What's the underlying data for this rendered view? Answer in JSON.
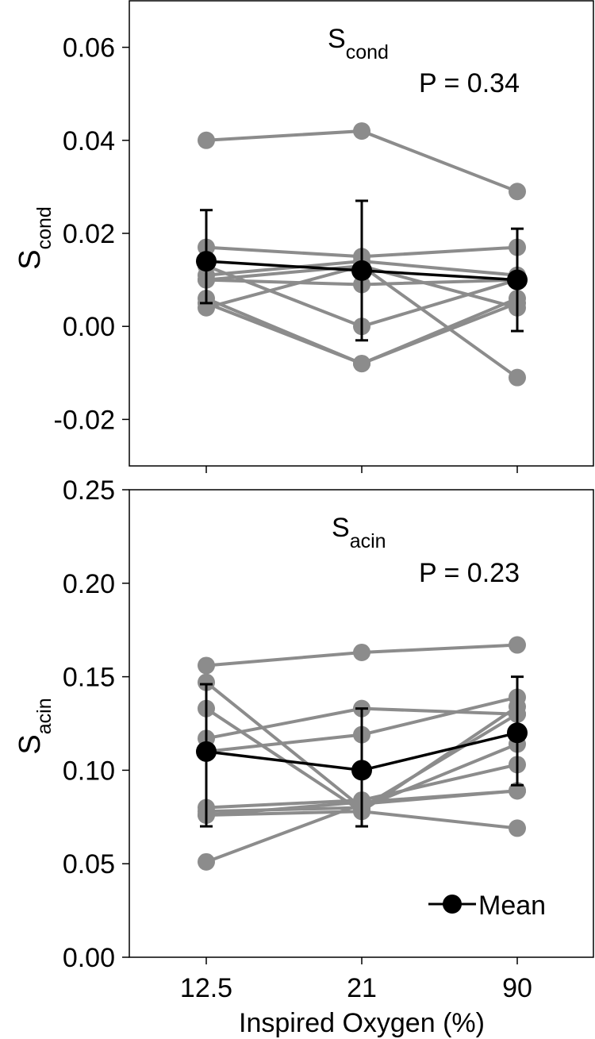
{
  "xlabel": "Inspired Oxygen (%)",
  "colors": {
    "subject": "#8c8c8c",
    "mean": "#000000",
    "frame": "#000000"
  },
  "chart_data": [
    {
      "type": "line",
      "title": "S",
      "title_sub": "cond",
      "annotation": "P = 0.34",
      "ylabel": "S",
      "ylabel_sub": "cond",
      "xlabel": "",
      "categories": [
        "12.5",
        "21",
        "90"
      ],
      "ylim": [
        -0.03,
        0.07
      ],
      "yticks": [
        "0.06",
        "0.04",
        "0.02",
        "0.00",
        "-0.02"
      ],
      "ytick_values": [
        0.06,
        0.04,
        0.02,
        0.0,
        -0.02
      ],
      "subjects": [
        [
          0.04,
          0.042,
          0.029
        ],
        [
          0.017,
          0.015,
          0.017
        ],
        [
          0.011,
          0.014,
          0.011
        ],
        [
          0.01,
          0.009,
          0.01
        ],
        [
          0.013,
          0.0,
          0.01
        ],
        [
          0.006,
          -0.008,
          0.006
        ],
        [
          0.005,
          -0.008,
          0.005
        ],
        [
          0.004,
          0.013,
          -0.011
        ],
        [
          0.01,
          0.013,
          0.004
        ]
      ],
      "mean": {
        "values": [
          0.014,
          0.012,
          0.01
        ],
        "err_low": [
          0.005,
          -0.003,
          -0.001
        ],
        "err_high": [
          0.025,
          0.027,
          0.021
        ]
      }
    },
    {
      "type": "line",
      "title": "S",
      "title_sub": "acin",
      "annotation": "P = 0.23",
      "ylabel": "S",
      "ylabel_sub": "acin",
      "xlabel": "Inspired Oxygen (%)",
      "categories": [
        "12.5",
        "21",
        "90"
      ],
      "ylim": [
        0.0,
        0.25
      ],
      "yticks": [
        "0.25",
        "0.20",
        "0.15",
        "0.10",
        "0.05",
        "0.00"
      ],
      "ytick_values": [
        0.25,
        0.2,
        0.15,
        0.1,
        0.05,
        0.0
      ],
      "subjects": [
        [
          0.156,
          0.163,
          0.167
        ],
        [
          0.147,
          0.08,
          0.13
        ],
        [
          0.133,
          0.078,
          0.134
        ],
        [
          0.117,
          0.133,
          0.13
        ],
        [
          0.11,
          0.119,
          0.139
        ],
        [
          0.08,
          0.084,
          0.103
        ],
        [
          0.078,
          0.08,
          0.114
        ],
        [
          0.076,
          0.083,
          0.089
        ],
        [
          0.076,
          0.078,
          0.069
        ],
        [
          0.051,
          0.082,
          0.089
        ]
      ],
      "mean": {
        "values": [
          0.11,
          0.1,
          0.12
        ],
        "err_low": [
          0.07,
          0.07,
          0.092
        ],
        "err_high": [
          0.146,
          0.133,
          0.15
        ]
      },
      "legend": {
        "label": "Mean",
        "position": "bottom-right"
      }
    }
  ]
}
